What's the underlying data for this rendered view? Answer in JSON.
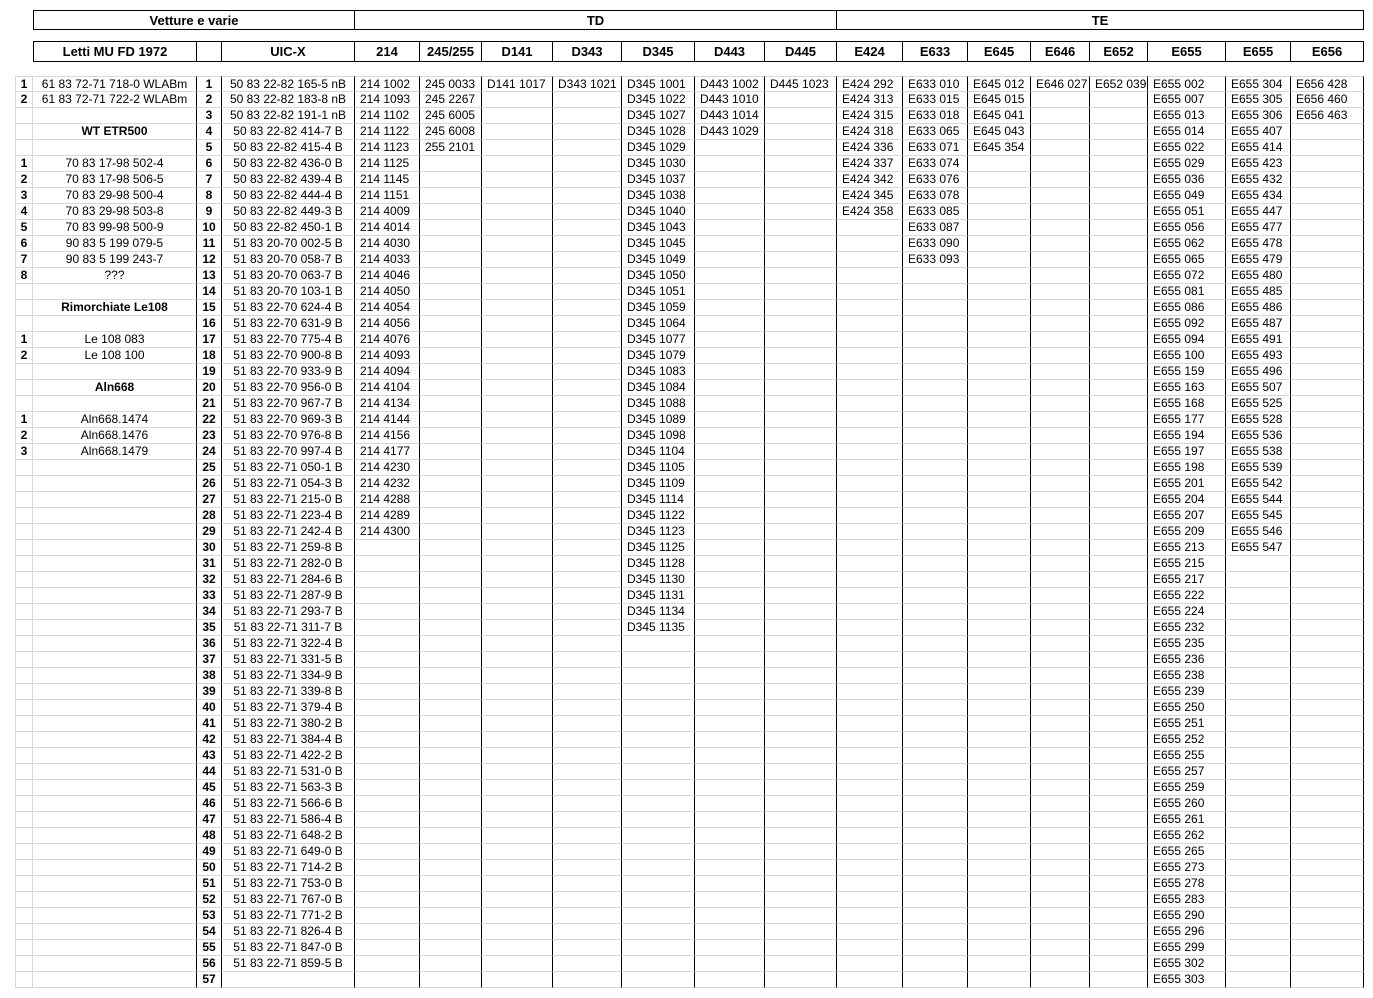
{
  "sheet": {
    "bands": {
      "left": "Vetture e varie",
      "td": "TD",
      "te": "TE"
    },
    "headers": [
      "Letti MU FD 1972",
      "",
      "UIC-X",
      "214",
      "245/255",
      "D141",
      "D343",
      "D345",
      "D443",
      "D445",
      "E424",
      "E633",
      "E645",
      "E646",
      "E652",
      "E655",
      "E655",
      "E656"
    ],
    "left_bold_rows": [
      4,
      15,
      20
    ],
    "row_count": 57,
    "colors": {
      "grid_line": "#d8d8d8",
      "border": "#000000",
      "background": "#ffffff",
      "text": "#000000"
    },
    "columns": {
      "left_num": [
        "1",
        "2",
        "",
        "",
        "",
        "1",
        "2",
        "3",
        "4",
        "5",
        "6",
        "7",
        "8",
        "",
        "",
        "",
        "1",
        "2",
        "",
        "",
        "",
        "1",
        "2",
        "3",
        "",
        "",
        "",
        "",
        "",
        "",
        "",
        "",
        "",
        "",
        "",
        "",
        "",
        "",
        "",
        "",
        "",
        "",
        "",
        "",
        "",
        "",
        "",
        "",
        "",
        "",
        "",
        "",
        "",
        "",
        "",
        "",
        ""
      ],
      "left_val": [
        "61 83 72-71 718-0 WLABm",
        "61 83 72-71 722-2 WLABm",
        "",
        "WT ETR500",
        "",
        "70 83 17-98 502-4",
        "70 83 17-98 506-5",
        "70 83 29-98 500-4",
        "70 83 29-98 503-8",
        "70 83 99-98 500-9",
        "90 83 5 199 079-5",
        "90 83 5 199 243-7",
        "???",
        "",
        "Rimorchiate Le108",
        "",
        "Le 108 083",
        "Le 108 100",
        "",
        "Aln668",
        "",
        "Aln668.1474",
        "Aln668.1476",
        "Aln668.1479",
        "",
        "",
        "",
        "",
        "",
        "",
        "",
        "",
        "",
        "",
        "",
        "",
        "",
        "",
        "",
        "",
        "",
        "",
        "",
        "",
        "",
        "",
        "",
        "",
        "",
        "",
        "",
        "",
        "",
        "",
        "",
        "",
        ""
      ],
      "row_num": [
        "1",
        "2",
        "3",
        "4",
        "5",
        "6",
        "7",
        "8",
        "9",
        "10",
        "11",
        "12",
        "13",
        "14",
        "15",
        "16",
        "17",
        "18",
        "19",
        "20",
        "21",
        "22",
        "23",
        "24",
        "25",
        "26",
        "27",
        "28",
        "29",
        "30",
        "31",
        "32",
        "33",
        "34",
        "35",
        "36",
        "37",
        "38",
        "39",
        "40",
        "41",
        "42",
        "43",
        "44",
        "45",
        "46",
        "47",
        "48",
        "49",
        "50",
        "51",
        "52",
        "53",
        "54",
        "55",
        "56",
        "57"
      ],
      "uic_x": [
        "50 83 22-82 165-5 nB",
        "50 83 22-82 183-8 nB",
        "50 83 22-82 191-1 nB",
        "50 83 22-82 414-7 B",
        "50 83 22-82 415-4 B",
        "50 83 22-82 436-0 B",
        "50 83 22-82 439-4 B",
        "50 83 22-82 444-4 B",
        "50 83 22-82 449-3 B",
        "50 83 22-82 450-1 B",
        "51 83 20-70 002-5 B",
        "51 83 20-70 058-7 B",
        "51 83 20-70 063-7 B",
        "51 83 20-70 103-1 B",
        "51 83 22-70 624-4 B",
        "51 83 22-70 631-9 B",
        "51 83 22-70 775-4 B",
        "51 83 22-70 900-8 B",
        "51 83 22-70 933-9 B",
        "51 83 22-70 956-0 B",
        "51 83 22-70 967-7 B",
        "51 83 22-70 969-3 B",
        "51 83 22-70 976-8 B",
        "51 83 22-70 997-4 B",
        "51 83 22-71 050-1 B",
        "51 83 22-71 054-3 B",
        "51 83 22-71 215-0 B",
        "51 83 22-71 223-4 B",
        "51 83 22-71 242-4 B",
        "51 83 22-71 259-8 B",
        "51 83 22-71 282-0 B",
        "51 83 22-71 284-6 B",
        "51 83 22-71 287-9 B",
        "51 83 22-71 293-7 B",
        "51 83 22-71 311-7 B",
        "51 83 22-71 322-4 B",
        "51 83 22-71 331-5 B",
        "51 83 22-71 334-9 B",
        "51 83 22-71 339-8 B",
        "51 83 22-71 379-4 B",
        "51 83 22-71 380-2 B",
        "51 83 22-71 384-4 B",
        "51 83 22-71 422-2 B",
        "51 83 22-71 531-0 B",
        "51 83 22-71 563-3 B",
        "51 83 22-71 566-6 B",
        "51 83 22-71 586-4 B",
        "51 83 22-71 648-2 B",
        "51 83 22-71 649-0 B",
        "51 83 22-71 714-2 B",
        "51 83 22-71 753-0 B",
        "51 83 22-71 767-0 B",
        "51 83 22-71 771-2 B",
        "51 83 22-71 826-4 B",
        "51 83 22-71 847-0 B",
        "51 83 22-71 859-5 B",
        ""
      ],
      "c214": [
        "214 1002",
        "214 1093",
        "214 1102",
        "214 1122",
        "214 1123",
        "214 1125",
        "214 1145",
        "214 1151",
        "214 4009",
        "214 4014",
        "214 4030",
        "214 4033",
        "214 4046",
        "214 4050",
        "214 4054",
        "214 4056",
        "214 4076",
        "214 4093",
        "214 4094",
        "214 4104",
        "214 4134",
        "214 4144",
        "214 4156",
        "214 4177",
        "214 4230",
        "214 4232",
        "214 4288",
        "214 4289",
        "214 4300"
      ],
      "c245_255": [
        "245 0033",
        "245 2267",
        "245 6005",
        "245 6008",
        "255 2101"
      ],
      "d141": [
        "D141 1017"
      ],
      "d343": [
        "D343 1021"
      ],
      "d345": [
        "D345 1001",
        "D345 1022",
        "D345 1027",
        "D345 1028",
        "D345 1029",
        "D345 1030",
        "D345 1037",
        "D345 1038",
        "D345 1040",
        "D345 1043",
        "D345 1045",
        "D345 1049",
        "D345 1050",
        "D345 1051",
        "D345 1059",
        "D345 1064",
        "D345 1077",
        "D345 1079",
        "D345 1083",
        "D345 1084",
        "D345 1088",
        "D345 1089",
        "D345 1098",
        "D345 1104",
        "D345 1105",
        "D345 1109",
        "D345 1114",
        "D345 1122",
        "D345 1123",
        "D345 1125",
        "D345 1128",
        "D345 1130",
        "D345 1131",
        "D345 1134",
        "D345 1135"
      ],
      "d443": [
        "D443 1002",
        "D443 1010",
        "D443 1014",
        "D443 1029"
      ],
      "d445": [
        "D445 1023"
      ],
      "e424": [
        "E424 292",
        "E424 313",
        "E424 315",
        "E424 318",
        "E424 336",
        "E424 337",
        "E424 342",
        "E424 345",
        "E424 358"
      ],
      "e633": [
        "E633 010",
        "E633 015",
        "E633 018",
        "E633 065",
        "E633 071",
        "E633 074",
        "E633 076",
        "E633 078",
        "E633 085",
        "E633 087",
        "E633 090",
        "E633 093"
      ],
      "e645": [
        "E645 012",
        "E645 015",
        "E645 041",
        "E645 043",
        "E645 354"
      ],
      "e646": [
        "E646 027"
      ],
      "e652": [
        "E652 039"
      ],
      "e655_1": [
        "E655 002",
        "E655 007",
        "E655 013",
        "E655 014",
        "E655 022",
        "E655 029",
        "E655 036",
        "E655 049",
        "E655 051",
        "E655 056",
        "E655 062",
        "E655 065",
        "E655 072",
        "E655 081",
        "E655 086",
        "E655 092",
        "E655 094",
        "E655 100",
        "E655 159",
        "E655 163",
        "E655 168",
        "E655 177",
        "E655 194",
        "E655 197",
        "E655 198",
        "E655 201",
        "E655 204",
        "E655 207",
        "E655 209",
        "E655 213",
        "E655 215",
        "E655 217",
        "E655 222",
        "E655 224",
        "E655 232",
        "E655 235",
        "E655 236",
        "E655 238",
        "E655 239",
        "E655 250",
        "E655 251",
        "E655 252",
        "E655 255",
        "E655 257",
        "E655 259",
        "E655 260",
        "E655 261",
        "E655 262",
        "E655 265",
        "E655 273",
        "E655 278",
        "E655 283",
        "E655 290",
        "E655 296",
        "E655 299",
        "E655 302",
        "E655 303"
      ],
      "e655_2": [
        "E655 304",
        "E655 305",
        "E655 306",
        "E655 407",
        "E655 414",
        "E655 423",
        "E655 432",
        "E655 434",
        "E655 447",
        "E655 477",
        "E655 478",
        "E655 479",
        "E655 480",
        "E655 485",
        "E655 486",
        "E655 487",
        "E655 491",
        "E655 493",
        "E655 496",
        "E655 507",
        "E655 525",
        "E655 528",
        "E655 536",
        "E655 538",
        "E655 539",
        "E655 542",
        "E655 544",
        "E655 545",
        "E655 546",
        "E655 547"
      ],
      "e656": [
        "E656 428",
        "E656 460",
        "E656 463"
      ]
    }
  }
}
